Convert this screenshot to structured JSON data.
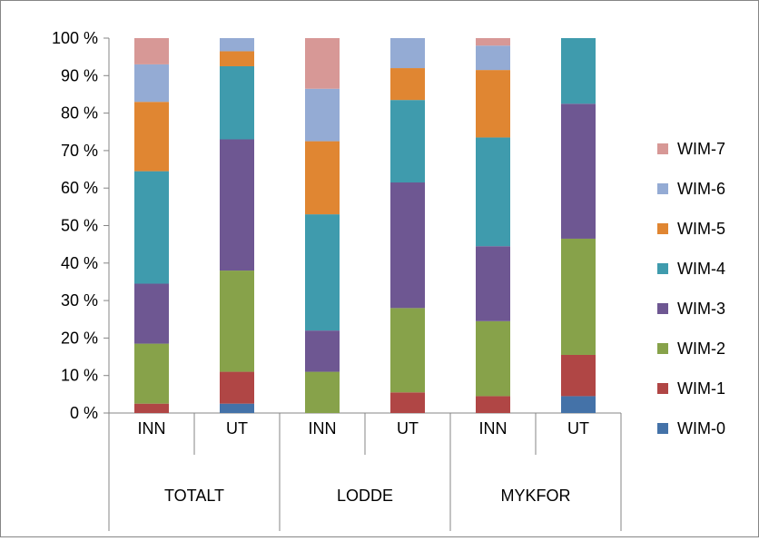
{
  "chart_data": {
    "type": "bar",
    "stacked": "percent",
    "title": "",
    "xlabel": "",
    "ylabel": "",
    "ylim": [
      0,
      100
    ],
    "yticks": [
      "0 %",
      "10 %",
      "20 %",
      "30 %",
      "40 %",
      "50 %",
      "60 %",
      "70 %",
      "80 %",
      "90 %",
      "100 %"
    ],
    "categories": [
      "INN",
      "UT",
      "INN",
      "UT",
      "INN",
      "UT"
    ],
    "groups": [
      {
        "label": "TOTALT",
        "span": 2
      },
      {
        "label": "LODDE",
        "span": 2
      },
      {
        "label": "MYKFOR",
        "span": 2
      }
    ],
    "legend_position": "right",
    "grid": false,
    "series": [
      {
        "name": "WIM-0",
        "color": "#4472A8",
        "values": [
          0,
          2.5,
          0,
          0,
          0,
          4.5
        ]
      },
      {
        "name": "WIM-1",
        "color": "#B04645",
        "values": [
          2.5,
          8.5,
          0,
          5.5,
          4.5,
          11
        ]
      },
      {
        "name": "WIM-2",
        "color": "#87A24A",
        "values": [
          16,
          27,
          11,
          22.5,
          20,
          31
        ]
      },
      {
        "name": "WIM-3",
        "color": "#6E5792",
        "values": [
          16,
          35,
          11,
          33.5,
          20,
          36
        ]
      },
      {
        "name": "WIM-4",
        "color": "#3F9BAD",
        "values": [
          30,
          19.5,
          31,
          22,
          29,
          17.5
        ]
      },
      {
        "name": "WIM-5",
        "color": "#E08632",
        "values": [
          18.5,
          4,
          19.5,
          8.5,
          18,
          0
        ]
      },
      {
        "name": "WIM-6",
        "color": "#94ABD4",
        "values": [
          10,
          3.5,
          14,
          8,
          6.5,
          0
        ]
      },
      {
        "name": "WIM-7",
        "color": "#D79896",
        "values": [
          7,
          0,
          13.5,
          0,
          2,
          0
        ]
      }
    ]
  }
}
